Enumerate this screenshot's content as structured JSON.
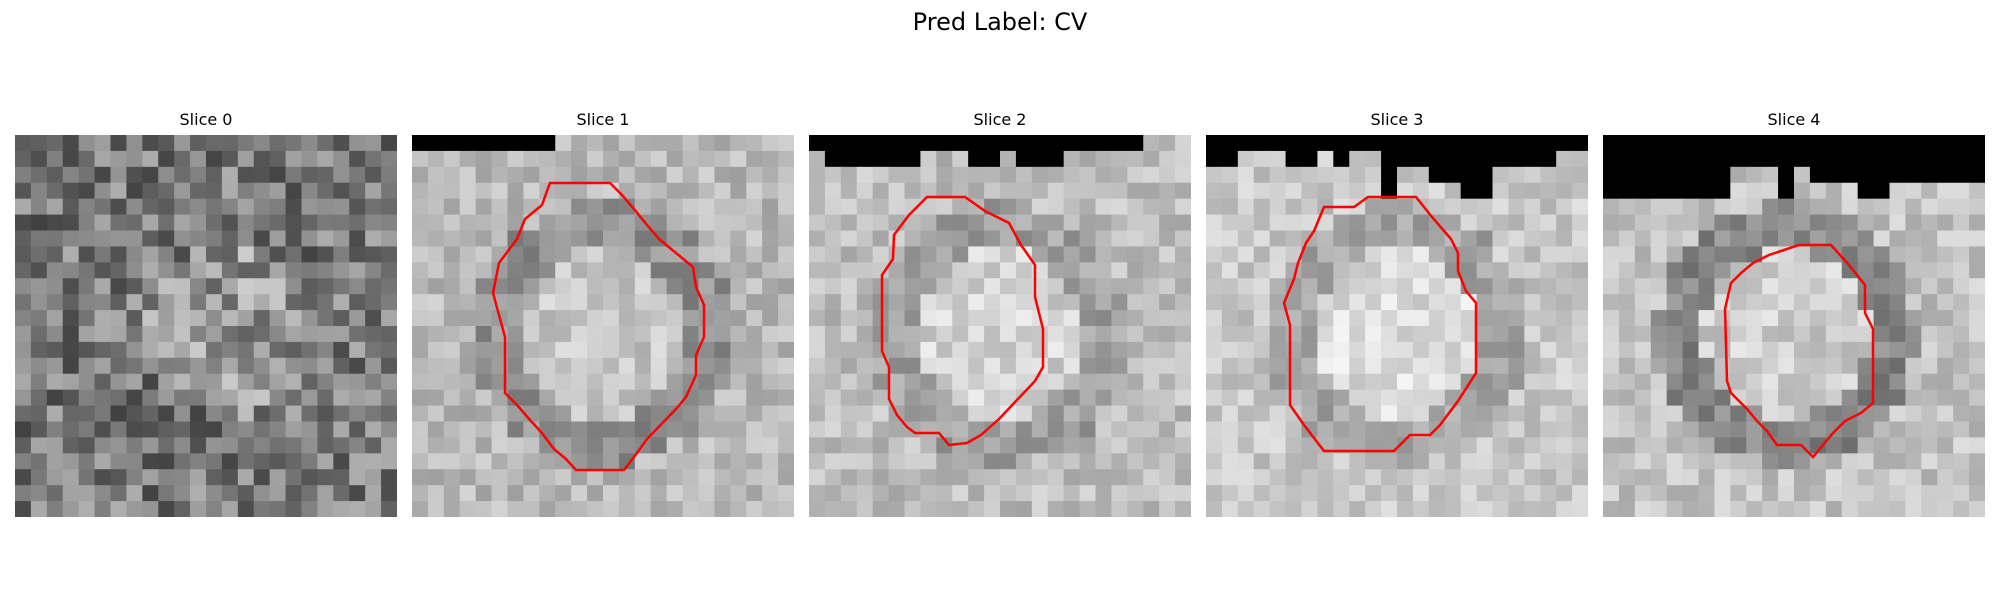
{
  "figure": {
    "title": "Pred Label: CV"
  },
  "panels": [
    {
      "title": "Slice 0",
      "has_contour": false
    },
    {
      "title": "Slice 1",
      "has_contour": true
    },
    {
      "title": "Slice 2",
      "has_contour": true
    },
    {
      "title": "Slice 3",
      "has_contour": true
    },
    {
      "title": "Slice 4",
      "has_contour": true
    }
  ],
  "colors": {
    "contour": "#ff0000",
    "background": "#ffffff",
    "masked_region": "#000000"
  }
}
